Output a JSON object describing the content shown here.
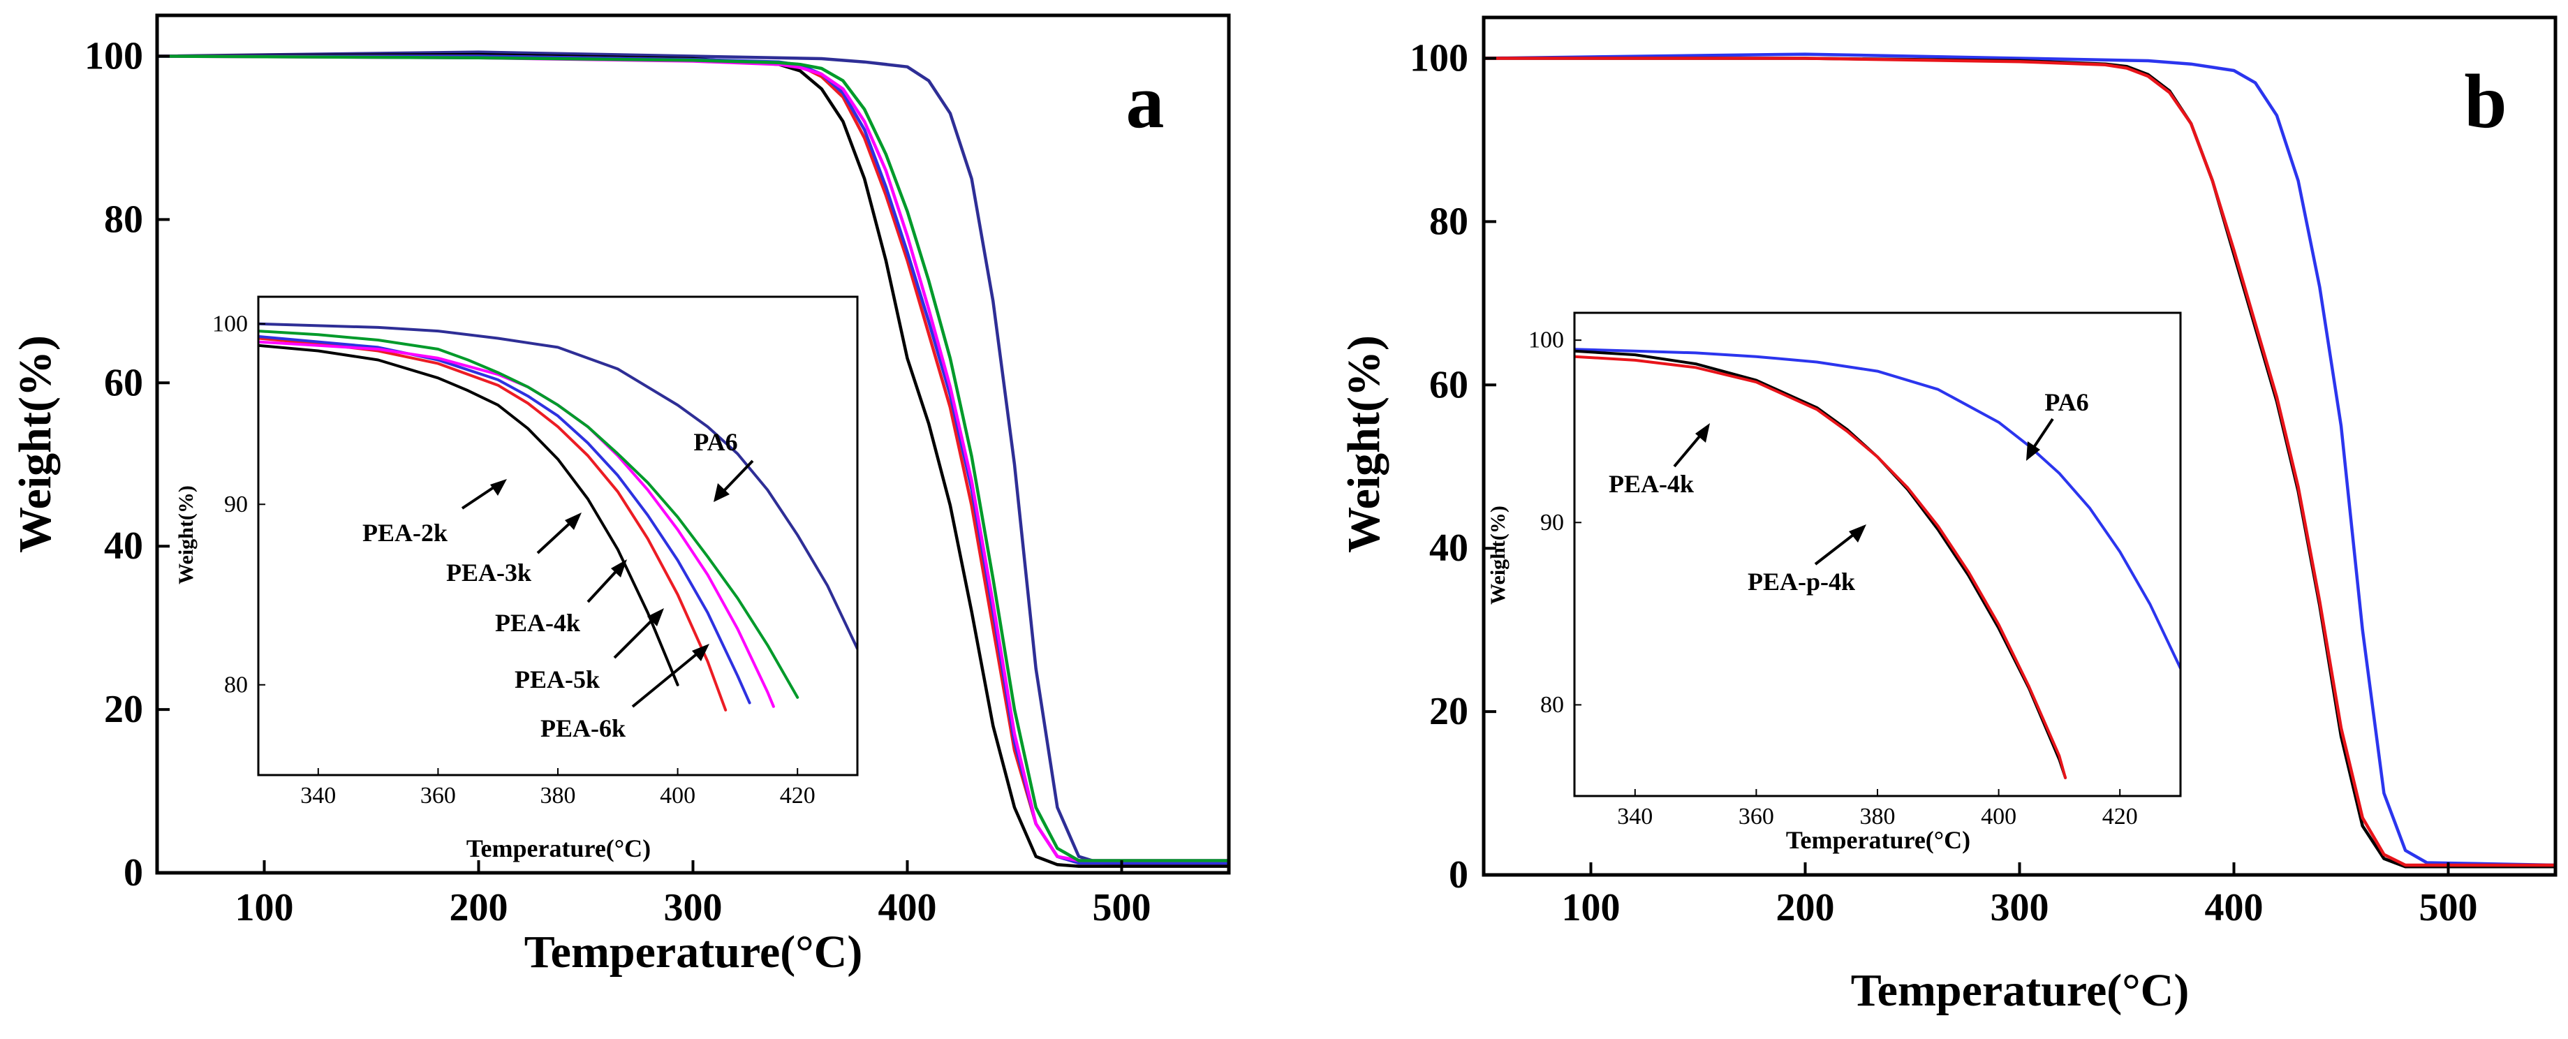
{
  "colors": {
    "PA6": "#2e2e96",
    "PA6_b": "#2b35ee",
    "PEA-2k": "#000000",
    "PEA-3k": "#ec1c24",
    "PEA-4k": "#2e31e0",
    "PEA-5k": "#ff00ff",
    "PEA-6k": "#009a2a",
    "PEA-4k_b": "#000000",
    "PEA-p-4k": "#e8141a"
  },
  "chart_data": [
    {
      "panel": "a",
      "type": "line",
      "xlabel": "Temperature(°C)",
      "ylabel": "Weight(%)",
      "xlim": [
        50,
        550
      ],
      "ylim": [
        0,
        105
      ],
      "xticks": [
        100,
        200,
        300,
        400,
        500
      ],
      "yticks": [
        0,
        20,
        40,
        60,
        80,
        100
      ],
      "series": [
        {
          "name": "PA6",
          "color_key": "PA6",
          "x": [
            50,
            200,
            300,
            360,
            380,
            400,
            410,
            420,
            430,
            440,
            450,
            460,
            470,
            480,
            490,
            550
          ],
          "y": [
            100,
            100.5,
            100,
            99.7,
            99.3,
            98.7,
            97,
            93,
            85,
            70,
            50,
            25,
            8,
            2,
            1.2,
            1
          ]
        },
        {
          "name": "PEA-2k",
          "color_key": "PEA-2k",
          "x": [
            50,
            200,
            300,
            340,
            350,
            360,
            370,
            380,
            390,
            400,
            410,
            420,
            430,
            440,
            450,
            460,
            470,
            480,
            550
          ],
          "y": [
            100,
            100.2,
            99.7,
            99,
            98.2,
            96,
            92,
            85,
            75,
            63,
            55,
            45,
            32,
            18,
            8,
            2,
            1,
            0.8,
            0.8
          ]
        },
        {
          "name": "PEA-3k",
          "color_key": "PEA-3k",
          "x": [
            50,
            200,
            300,
            340,
            350,
            360,
            370,
            380,
            390,
            400,
            410,
            420,
            430,
            440,
            450,
            460,
            470,
            480,
            550
          ],
          "y": [
            100,
            100,
            99.6,
            99.2,
            98.8,
            97.5,
            95,
            90,
            83,
            75,
            66,
            57,
            45,
            30,
            15,
            6,
            2,
            1.2,
            1.2
          ]
        },
        {
          "name": "PEA-4k",
          "color_key": "PEA-4k",
          "x": [
            50,
            200,
            300,
            340,
            350,
            360,
            370,
            380,
            390,
            400,
            410,
            420,
            430,
            440,
            450,
            460,
            470,
            480,
            550
          ],
          "y": [
            100,
            100,
            99.6,
            99.3,
            98.9,
            97.8,
            95.5,
            91,
            84,
            76,
            67.5,
            58.5,
            47,
            32,
            16,
            6,
            2,
            1.2,
            1.2
          ]
        },
        {
          "name": "PEA-5k",
          "color_key": "PEA-5k",
          "x": [
            50,
            200,
            300,
            340,
            350,
            360,
            370,
            380,
            390,
            400,
            410,
            420,
            430,
            440,
            450,
            460,
            470,
            480,
            550
          ],
          "y": [
            100,
            99.8,
            99.4,
            99,
            98.6,
            97.8,
            96,
            92,
            86,
            78,
            69,
            59.5,
            48,
            33,
            17,
            6,
            2,
            1.5,
            1.5
          ]
        },
        {
          "name": "PEA-6k",
          "color_key": "PEA-6k",
          "x": [
            50,
            200,
            300,
            340,
            350,
            360,
            370,
            380,
            390,
            400,
            410,
            420,
            430,
            440,
            450,
            460,
            470,
            480,
            550
          ],
          "y": [
            100,
            99.8,
            99.5,
            99.2,
            99,
            98.5,
            97,
            93.5,
            88,
            81,
            72.5,
            63,
            51,
            36,
            20,
            8,
            3,
            1.5,
            1.5
          ]
        }
      ],
      "inset": {
        "xlabel": "Temperature(°C)",
        "ylabel": "Weight(%)",
        "xlim": [
          330,
          430
        ],
        "ylim": [
          75,
          101.5
        ],
        "xticks": [
          340,
          360,
          380,
          400,
          420
        ],
        "yticks": [
          80,
          90,
          100
        ],
        "series": [
          {
            "name": "PA6",
            "color_key": "PA6",
            "x": [
              330,
              340,
              350,
              360,
              370,
              380,
              390,
              400,
              405,
              410,
              415,
              420,
              425,
              430
            ],
            "y": [
              100,
              99.9,
              99.8,
              99.6,
              99.2,
              98.7,
              97.5,
              95.5,
              94.3,
              92.8,
              90.8,
              88.3,
              85.5,
              82
            ]
          },
          {
            "name": "PEA-2k",
            "color_key": "PEA-2k",
            "x": [
              330,
              340,
              350,
              360,
              365,
              370,
              375,
              380,
              385,
              390,
              395,
              400
            ],
            "y": [
              98.8,
              98.5,
              98,
              97,
              96.3,
              95.5,
              94.2,
              92.5,
              90.3,
              87.5,
              84,
              80
            ]
          },
          {
            "name": "PEA-3k",
            "color_key": "PEA-3k",
            "x": [
              330,
              340,
              350,
              360,
              370,
              375,
              380,
              385,
              390,
              395,
              400,
              405,
              408
            ],
            "y": [
              99.2,
              98.9,
              98.5,
              97.8,
              96.6,
              95.6,
              94.3,
              92.7,
              90.7,
              88.1,
              85,
              81.3,
              78.6
            ]
          },
          {
            "name": "PEA-4k",
            "color_key": "PEA-4k",
            "x": [
              330,
              340,
              350,
              360,
              370,
              375,
              380,
              385,
              390,
              395,
              400,
              405,
              410,
              412
            ],
            "y": [
              99.3,
              99,
              98.7,
              98,
              96.9,
              96,
              94.9,
              93.4,
              91.6,
              89.4,
              86.9,
              84,
              80.5,
              79
            ]
          },
          {
            "name": "PEA-5k",
            "color_key": "PEA-5k",
            "x": [
              330,
              340,
              350,
              360,
              370,
              375,
              380,
              385,
              390,
              395,
              400,
              405,
              410,
              415,
              416
            ],
            "y": [
              99,
              98.8,
              98.6,
              98.1,
              97.2,
              96.5,
              95.5,
              94.3,
              92.7,
              90.8,
              88.6,
              86.1,
              83.1,
              79.6,
              78.8
            ]
          },
          {
            "name": "PEA-6k",
            "color_key": "PEA-6k",
            "x": [
              330,
              340,
              350,
              360,
              365,
              370,
              375,
              380,
              385,
              390,
              395,
              400,
              405,
              410,
              415,
              420
            ],
            "y": [
              99.6,
              99.4,
              99.1,
              98.6,
              98,
              97.3,
              96.5,
              95.5,
              94.3,
              92.8,
              91.2,
              89.3,
              87.1,
              84.8,
              82.2,
              79.3
            ]
          }
        ],
        "annotations": [
          "PA6",
          "PEA-2k",
          "PEA-3k",
          "PEA-4k",
          "PEA-5k",
          "PEA-6k"
        ]
      }
    },
    {
      "panel": "b",
      "type": "line",
      "xlabel": "Temperature(°C)",
      "ylabel": "Weight(%)",
      "xlim": [
        50,
        550
      ],
      "ylim": [
        0,
        105
      ],
      "xticks": [
        100,
        200,
        300,
        400,
        500
      ],
      "yticks": [
        0,
        20,
        40,
        60,
        80,
        100
      ],
      "series": [
        {
          "name": "PA6",
          "color_key": "PA6_b",
          "x": [
            50,
            200,
            300,
            360,
            380,
            400,
            410,
            420,
            430,
            440,
            450,
            460,
            470,
            480,
            490,
            550
          ],
          "y": [
            100,
            100.5,
            100,
            99.7,
            99.3,
            98.5,
            97,
            93,
            85,
            72,
            55,
            30,
            10,
            3,
            1.5,
            1.2
          ]
        },
        {
          "name": "PEA-4k",
          "color_key": "PEA-4k_b",
          "x": [
            50,
            200,
            300,
            340,
            350,
            360,
            370,
            380,
            390,
            400,
            410,
            420,
            430,
            440,
            450,
            460,
            470,
            480,
            550
          ],
          "y": [
            100,
            100,
            99.7,
            99.3,
            99,
            98,
            96,
            92,
            85,
            76,
            67,
            58,
            47,
            33,
            17,
            6,
            2,
            1,
            1
          ]
        },
        {
          "name": "PEA-p-4k",
          "color_key": "PEA-p-4k",
          "x": [
            50,
            200,
            300,
            340,
            350,
            360,
            370,
            380,
            390,
            400,
            410,
            420,
            430,
            440,
            450,
            460,
            470,
            480,
            550
          ],
          "y": [
            100,
            100,
            99.6,
            99.2,
            98.8,
            97.8,
            95.8,
            92,
            85,
            76.5,
            67.5,
            58.5,
            47.5,
            33.5,
            18,
            7,
            2.5,
            1.2,
            1.2
          ]
        }
      ],
      "inset": {
        "xlabel": "Temperature(°C)",
        "ylabel": "Weight(%)",
        "xlim": [
          330,
          430
        ],
        "ylim": [
          75,
          101.5
        ],
        "xticks": [
          340,
          360,
          380,
          400,
          420
        ],
        "yticks": [
          80,
          90,
          100
        ],
        "series": [
          {
            "name": "PA6",
            "color_key": "PA6_b",
            "x": [
              330,
              340,
              350,
              360,
              370,
              380,
              390,
              400,
              405,
              410,
              415,
              420,
              425,
              430
            ],
            "y": [
              99.5,
              99.4,
              99.3,
              99.1,
              98.8,
              98.3,
              97.3,
              95.5,
              94.2,
              92.7,
              90.8,
              88.4,
              85.5,
              82
            ]
          },
          {
            "name": "PEA-4k",
            "color_key": "PEA-4k_b",
            "x": [
              330,
              340,
              350,
              360,
              370,
              375,
              380,
              385,
              390,
              395,
              400,
              405,
              410,
              411
            ],
            "y": [
              99.4,
              99.2,
              98.7,
              97.8,
              96.3,
              95.1,
              93.6,
              91.8,
              89.6,
              87.1,
              84.2,
              80.9,
              77,
              76
            ]
          },
          {
            "name": "PEA-p-4k",
            "color_key": "PEA-p-4k",
            "x": [
              330,
              340,
              350,
              360,
              370,
              375,
              380,
              385,
              390,
              395,
              400,
              405,
              410,
              411
            ],
            "y": [
              99.1,
              98.9,
              98.5,
              97.7,
              96.2,
              95,
              93.6,
              91.9,
              89.8,
              87.3,
              84.4,
              81,
              77.2,
              76
            ]
          }
        ],
        "annotations": [
          "PA6",
          "PEA-4k",
          "PEA-p-4k"
        ]
      }
    }
  ]
}
